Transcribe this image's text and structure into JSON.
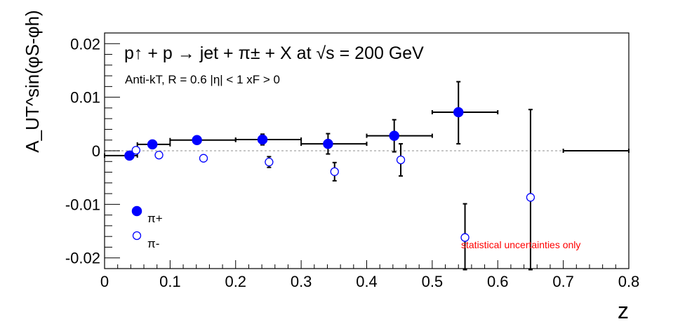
{
  "chart_data": {
    "type": "scatter",
    "title": "p↑ + p → jet + π± + X at √s = 200 GeV",
    "subtitle": "Anti-kT, R = 0.6   |η| < 1   xF > 0",
    "xlabel": "z",
    "ylabel": "A_UT^sin(φS-φh)",
    "xlim": [
      0,
      0.8
    ],
    "ylim": [
      -0.022,
      0.022
    ],
    "x_ticks": [
      0,
      0.1,
      0.2,
      0.3,
      0.4,
      0.5,
      0.6,
      0.7,
      0.8
    ],
    "x_tick_labels": [
      "0",
      "0.1",
      "0.2",
      "0.3",
      "0.4",
      "0.5",
      "0.6",
      "0.7",
      "0.8"
    ],
    "y_ticks": [
      -0.02,
      -0.01,
      0,
      0.01,
      0.02
    ],
    "y_tick_labels": [
      "-0.02",
      "-0.01",
      "0",
      "0.01",
      "0.02"
    ],
    "grid": false,
    "reference_line": 0,
    "legend_position": "bottom-left",
    "annotation": "statistical uncertainties only",
    "series": [
      {
        "name": "π+",
        "marker": "filled-circle",
        "color": "#0000ff",
        "points": [
          {
            "x": 0.038,
            "y": -0.0009,
            "xlow": 0.0,
            "xhigh": 0.05,
            "ylow": -0.0013,
            "yhigh": -0.0005
          },
          {
            "x": 0.073,
            "y": 0.0012,
            "xlow": 0.05,
            "xhigh": 0.1,
            "ylow": 0.0008,
            "yhigh": 0.0016
          },
          {
            "x": 0.141,
            "y": 0.002,
            "xlow": 0.1,
            "xhigh": 0.2,
            "ylow": 0.0014,
            "yhigh": 0.0026
          },
          {
            "x": 0.241,
            "y": 0.0021,
            "xlow": 0.2,
            "xhigh": 0.3,
            "ylow": 0.0011,
            "yhigh": 0.0031
          },
          {
            "x": 0.341,
            "y": 0.0013,
            "xlow": 0.3,
            "xhigh": 0.4,
            "ylow": -0.0006,
            "yhigh": 0.0032
          },
          {
            "x": 0.442,
            "y": 0.0028,
            "xlow": 0.4,
            "xhigh": 0.5,
            "ylow": -0.0002,
            "yhigh": 0.0058
          },
          {
            "x": 0.54,
            "y": 0.0072,
            "xlow": 0.5,
            "xhigh": 0.6,
            "ylow": 0.0013,
            "yhigh": 0.0129
          },
          {
            "x": 0.75,
            "y": 0.0,
            "xlow": 0.7,
            "xhigh": 0.8,
            "ylow": 0.0,
            "yhigh": 0.0
          }
        ]
      },
      {
        "name": "π-",
        "marker": "open-circle",
        "color": "#0000ff",
        "points": [
          {
            "x": 0.048,
            "y": 0.0001,
            "ylow": -0.0003,
            "yhigh": 0.0005
          },
          {
            "x": 0.083,
            "y": -0.0008,
            "ylow": -0.0012,
            "yhigh": -0.0004
          },
          {
            "x": 0.151,
            "y": -0.0014,
            "ylow": -0.0019,
            "yhigh": -0.0009
          },
          {
            "x": 0.251,
            "y": -0.0021,
            "ylow": -0.0031,
            "yhigh": -0.0011
          },
          {
            "x": 0.351,
            "y": -0.0039,
            "ylow": -0.0056,
            "yhigh": -0.0022
          },
          {
            "x": 0.452,
            "y": -0.0017,
            "ylow": -0.0047,
            "yhigh": 0.0013
          },
          {
            "x": 0.55,
            "y": -0.0162,
            "ylow": -0.0222,
            "yhigh": -0.0099
          },
          {
            "x": 0.65,
            "y": -0.0087,
            "ylow": -0.0222,
            "yhigh": 0.0077
          }
        ]
      }
    ]
  }
}
